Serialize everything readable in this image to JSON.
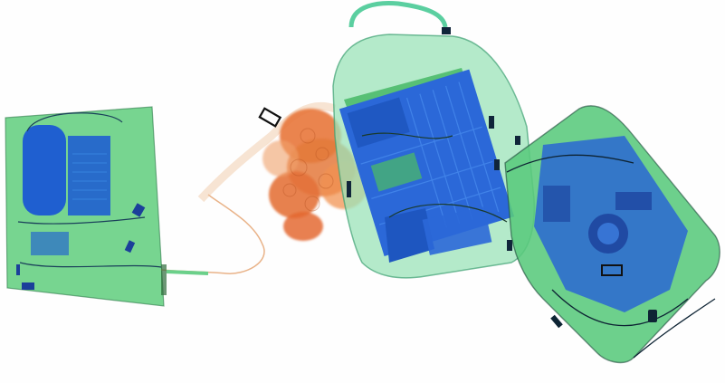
{
  "image": {
    "kind": "x-ray baggage scan",
    "colors": {
      "background": "#fefefe",
      "organic_orange": "#e8773a",
      "inorganic_green": "#45c46a",
      "light_green": "#8fe0a6",
      "metal_blue": "#1f5fd0",
      "dark_blue": "#1b3f9a",
      "outline_dark": "#1e4a3a"
    }
  }
}
